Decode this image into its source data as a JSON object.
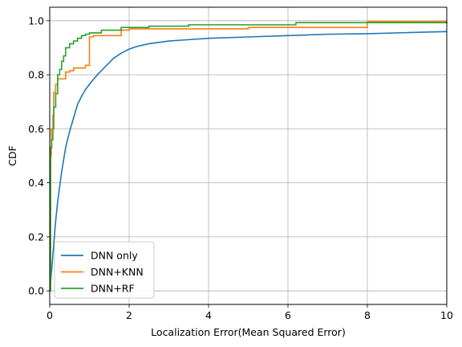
{
  "chart_data": {
    "type": "line",
    "title": "",
    "xlabel": "Localization Error(Mean Squared Error)",
    "ylabel": "CDF",
    "xlim": [
      0,
      10
    ],
    "ylim": [
      -0.05,
      1.05
    ],
    "xticks": [
      0,
      2,
      4,
      6,
      8,
      10
    ],
    "yticks": [
      0.0,
      0.2,
      0.4,
      0.6,
      0.8,
      1.0
    ],
    "xtick_labels": [
      "0",
      "2",
      "4",
      "6",
      "8",
      "10"
    ],
    "ytick_labels": [
      "0.0",
      "0.2",
      "0.4",
      "0.6",
      "0.8",
      "1.0"
    ],
    "grid": true,
    "legend_position": "lower-left",
    "series": [
      {
        "name": "DNN only",
        "color": "#1f77b4",
        "step": false,
        "x": [
          0,
          0.05,
          0.1,
          0.15,
          0.2,
          0.3,
          0.4,
          0.5,
          0.6,
          0.7,
          0.8,
          0.9,
          1.0,
          1.2,
          1.4,
          1.6,
          1.8,
          2.0,
          2.2,
          2.5,
          3.0,
          3.5,
          4.0,
          5.0,
          6.0,
          7.0,
          8.0,
          9.0,
          10.0
        ],
        "y": [
          0.0,
          0.08,
          0.17,
          0.26,
          0.33,
          0.44,
          0.53,
          0.59,
          0.64,
          0.69,
          0.72,
          0.745,
          0.765,
          0.8,
          0.83,
          0.86,
          0.88,
          0.895,
          0.905,
          0.915,
          0.925,
          0.93,
          0.935,
          0.94,
          0.945,
          0.95,
          0.952,
          0.956,
          0.96
        ]
      },
      {
        "name": "DNN+KNN",
        "color": "#ff7f0e",
        "step": true,
        "x": [
          0,
          0.02,
          0.04,
          0.08,
          0.1,
          0.15,
          0.2,
          0.3,
          0.4,
          0.5,
          0.6,
          0.7,
          0.9,
          1.0,
          1.1,
          1.5,
          1.8,
          2.0,
          3.0,
          5.0,
          6.2,
          8.0,
          10.0
        ],
        "y": [
          0.0,
          0.5,
          0.6,
          0.65,
          0.735,
          0.765,
          0.785,
          0.785,
          0.81,
          0.815,
          0.825,
          0.825,
          0.835,
          0.94,
          0.945,
          0.945,
          0.965,
          0.97,
          0.97,
          0.975,
          0.975,
          0.997,
          0.997
        ]
      },
      {
        "name": "DNN+RF",
        "color": "#2ca02c",
        "step": true,
        "x": [
          0,
          0.02,
          0.05,
          0.08,
          0.1,
          0.15,
          0.2,
          0.25,
          0.3,
          0.35,
          0.4,
          0.5,
          0.6,
          0.7,
          0.8,
          0.9,
          1.0,
          1.3,
          1.8,
          2.5,
          3.5,
          6.2,
          10.0
        ],
        "y": [
          0.0,
          0.53,
          0.56,
          0.6,
          0.68,
          0.73,
          0.8,
          0.82,
          0.85,
          0.87,
          0.9,
          0.915,
          0.925,
          0.935,
          0.945,
          0.95,
          0.955,
          0.965,
          0.975,
          0.98,
          0.985,
          0.993,
          0.997
        ]
      }
    ]
  }
}
